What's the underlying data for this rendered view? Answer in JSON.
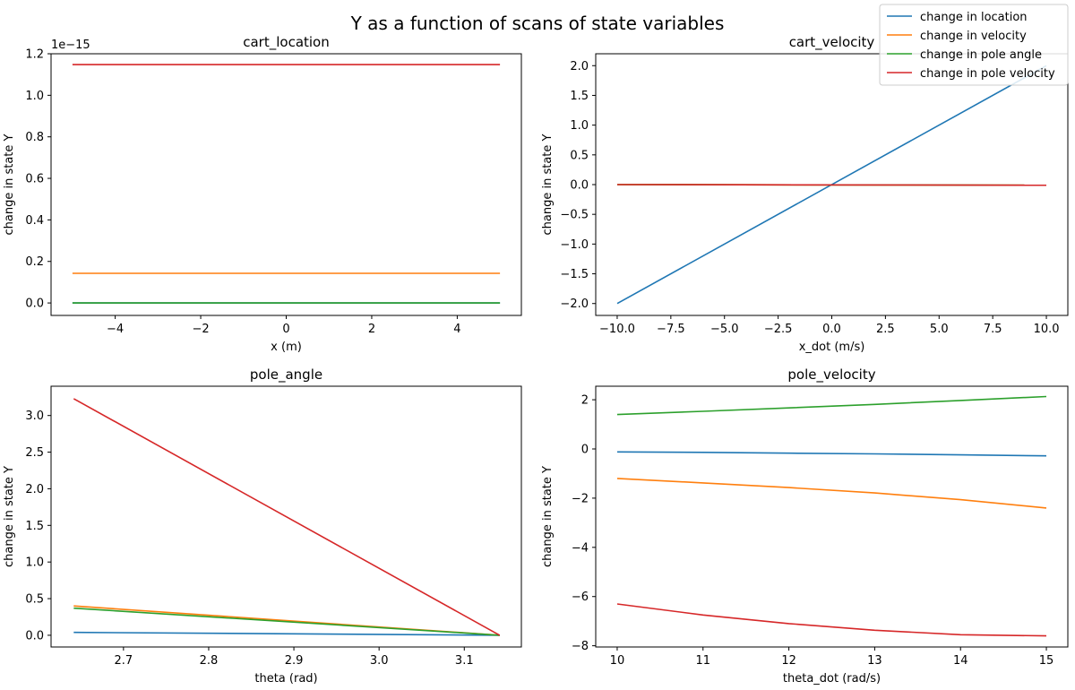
{
  "figure": {
    "title": "Y as a function of scans of state variables",
    "legend": {
      "placement": "top-right",
      "entries": [
        {
          "label": "change in location",
          "color": "#1f77b4"
        },
        {
          "label": "change in velocity",
          "color": "#ff7f0e"
        },
        {
          "label": "change in pole angle",
          "color": "#2ca02c"
        },
        {
          "label": "change in pole velocity",
          "color": "#d62728"
        }
      ]
    }
  },
  "chart_data": [
    {
      "type": "line",
      "title": "cart_location",
      "xlabel": "x (m)",
      "ylabel": "change in state Y",
      "offset_text": "1e−15",
      "xlim": [
        -5.5,
        5.5
      ],
      "ylim": [
        -0.06,
        1.2
      ],
      "xticks": [
        -4,
        -2,
        0,
        2,
        4
      ],
      "xtick_labels": [
        "−4",
        "−2",
        "0",
        "2",
        "4"
      ],
      "yticks": [
        0,
        0.2,
        0.4,
        0.6,
        0.8,
        1.0,
        1.2
      ],
      "ytick_labels": [
        "0.0",
        "0.2",
        "0.4",
        "0.6",
        "0.8",
        "1.0",
        "1.2"
      ],
      "x": [
        -5,
        5
      ],
      "series": [
        {
          "name": "change in location",
          "color": "#1f77b4",
          "values": [
            0,
            0
          ]
        },
        {
          "name": "change in velocity",
          "color": "#ff7f0e",
          "values": [
            0.143,
            0.143
          ]
        },
        {
          "name": "change in pole angle",
          "color": "#2ca02c",
          "values": [
            0,
            0
          ]
        },
        {
          "name": "change in pole velocity",
          "color": "#d62728",
          "values": [
            1.148,
            1.148
          ]
        }
      ]
    },
    {
      "type": "line",
      "title": "cart_velocity",
      "xlabel": "x_dot (m/s)",
      "ylabel": "change in state Y",
      "xlim": [
        -11,
        11
      ],
      "ylim": [
        -2.2,
        2.2
      ],
      "xticks": [
        -10,
        -7.5,
        -5,
        -2.5,
        0,
        2.5,
        5,
        7.5,
        10
      ],
      "xtick_labels": [
        "−10.0",
        "−7.5",
        "−5.0",
        "−2.5",
        "0.0",
        "2.5",
        "5.0",
        "7.5",
        "10.0"
      ],
      "yticks": [
        -2,
        -1.5,
        -1,
        -0.5,
        0,
        0.5,
        1,
        1.5,
        2
      ],
      "ytick_labels": [
        "−2.0",
        "−1.5",
        "−1.0",
        "−0.5",
        "0.0",
        "0.5",
        "1.0",
        "1.5",
        "2.0"
      ],
      "x": [
        -10,
        10
      ],
      "series": [
        {
          "name": "change in location",
          "color": "#1f77b4",
          "values": [
            -2,
            2
          ]
        },
        {
          "name": "change in velocity",
          "color": "#ff7f0e",
          "values": [
            0,
            -0.01
          ]
        },
        {
          "name": "change in pole angle",
          "color": "#2ca02c",
          "values": [
            0,
            -0.01
          ]
        },
        {
          "name": "change in pole velocity",
          "color": "#d62728",
          "values": [
            0,
            -0.01
          ]
        }
      ]
    },
    {
      "type": "line",
      "title": "pole_angle",
      "xlabel": "theta (rad)",
      "ylabel": "change in state Y",
      "xlim": [
        2.615,
        3.167
      ],
      "ylim": [
        -0.16,
        3.4
      ],
      "xticks": [
        2.7,
        2.8,
        2.9,
        3.0,
        3.1
      ],
      "xtick_labels": [
        "2.7",
        "2.8",
        "2.9",
        "3.0",
        "3.1"
      ],
      "yticks": [
        0,
        0.5,
        1,
        1.5,
        2,
        2.5,
        3
      ],
      "ytick_labels": [
        "0.0",
        "0.5",
        "1.0",
        "1.5",
        "2.0",
        "2.5",
        "3.0"
      ],
      "x": [
        2.6416,
        3.1416
      ],
      "series": [
        {
          "name": "change in location",
          "color": "#1f77b4",
          "values": [
            0.04,
            0
          ]
        },
        {
          "name": "change in velocity",
          "color": "#ff7f0e",
          "values": [
            0.4,
            0
          ]
        },
        {
          "name": "change in pole angle",
          "color": "#2ca02c",
          "values": [
            0.37,
            0
          ]
        },
        {
          "name": "change in pole velocity",
          "color": "#d62728",
          "values": [
            3.23,
            0
          ]
        }
      ]
    },
    {
      "type": "line",
      "title": "pole_velocity",
      "xlabel": "theta_dot (rad/s)",
      "ylabel": "change in state Y",
      "xlim": [
        9.75,
        15.25
      ],
      "ylim": [
        -8.05,
        2.55
      ],
      "xticks": [
        10,
        11,
        12,
        13,
        14,
        15
      ],
      "xtick_labels": [
        "10",
        "11",
        "12",
        "13",
        "14",
        "15"
      ],
      "yticks": [
        -8,
        -6,
        -4,
        -2,
        0,
        2
      ],
      "ytick_labels": [
        "−8",
        "−6",
        "−4",
        "−2",
        "0",
        "2"
      ],
      "x": [
        10,
        11,
        12,
        13,
        14,
        15
      ],
      "series": [
        {
          "name": "change in location",
          "color": "#1f77b4",
          "values": [
            -0.12,
            -0.14,
            -0.17,
            -0.2,
            -0.24,
            -0.28
          ]
        },
        {
          "name": "change in velocity",
          "color": "#ff7f0e",
          "values": [
            -1.2,
            -1.38,
            -1.57,
            -1.79,
            -2.06,
            -2.4
          ]
        },
        {
          "name": "change in pole angle",
          "color": "#2ca02c",
          "values": [
            1.4,
            1.53,
            1.67,
            1.81,
            1.97,
            2.13
          ]
        },
        {
          "name": "change in pole velocity",
          "color": "#d62728",
          "values": [
            -6.3,
            -6.75,
            -7.1,
            -7.37,
            -7.55,
            -7.6
          ]
        }
      ]
    }
  ]
}
